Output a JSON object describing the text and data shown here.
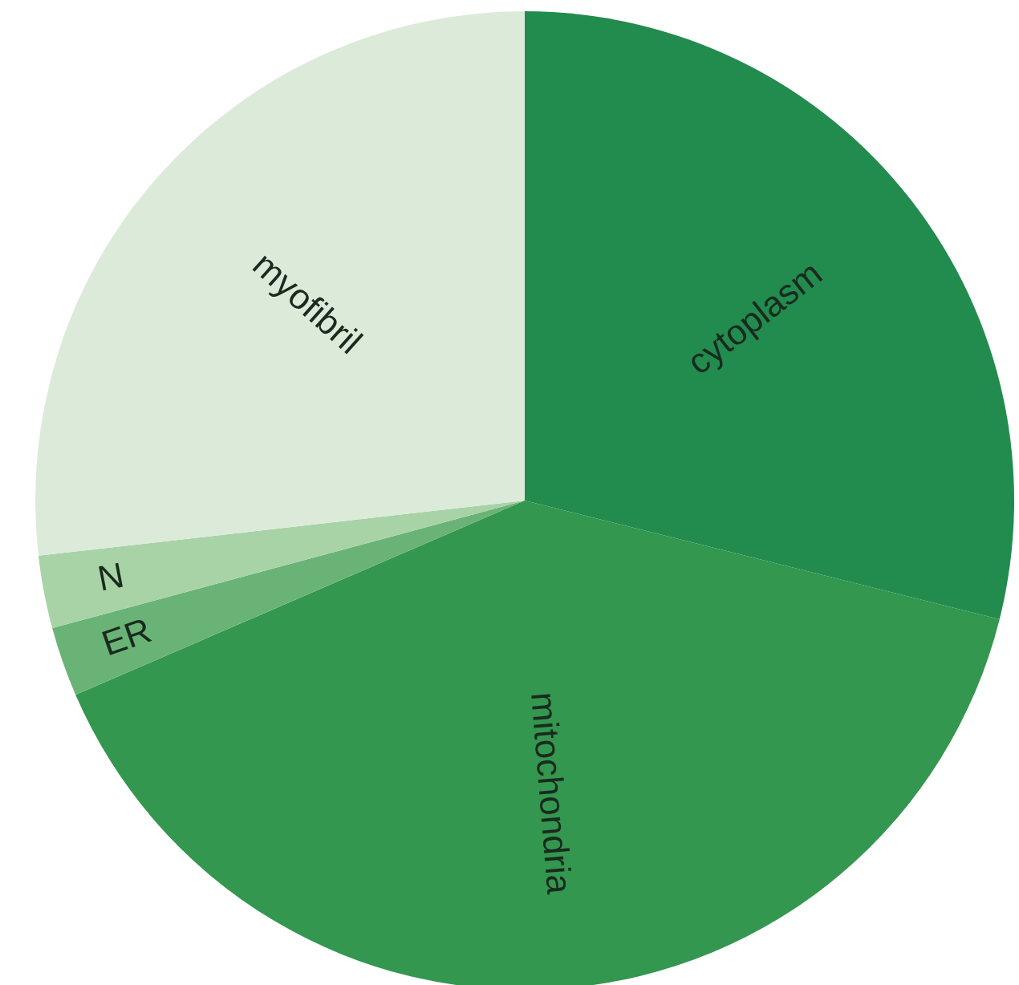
{
  "chart_data": {
    "type": "pie",
    "categories": [
      "cytoplasm",
      "mitochondria",
      "ER",
      "N",
      "myofibril"
    ],
    "values": [
      28.9,
      39.6,
      2.3,
      2.4,
      26.8
    ],
    "colors": [
      "#228b4e",
      "#33974f",
      "#6ab377",
      "#a8d3a6",
      "#dcebd9"
    ]
  }
}
